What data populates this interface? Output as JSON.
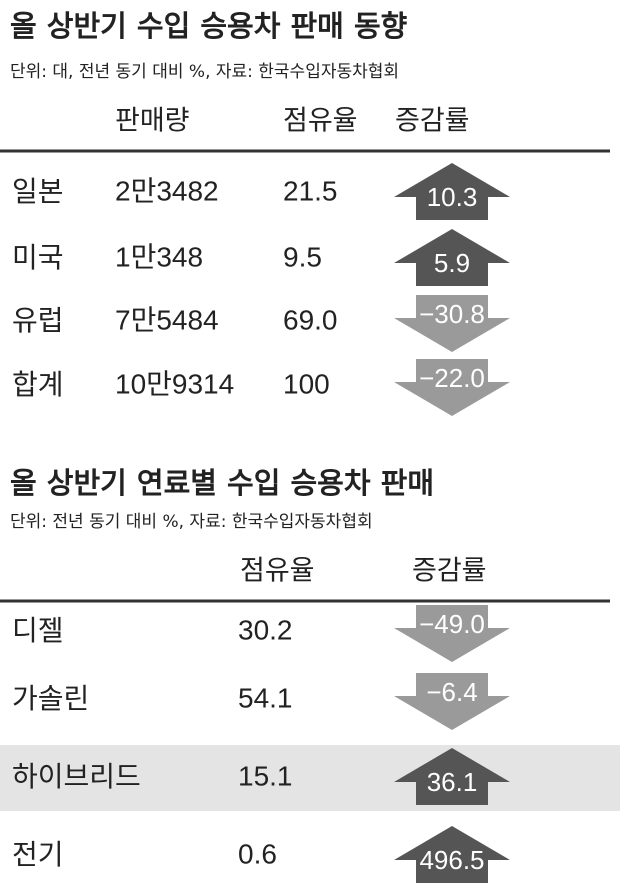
{
  "tables": [
    {
      "title": "올 상반기 수입 승용차 판매 동향",
      "subtitle": "단위: 대, 전년 동기 대비 %, 자료: 한국수입자동차협회",
      "header": [
        "판매량",
        "점유율",
        "증감률"
      ],
      "rows": [
        [
          "일본",
          "2만3482",
          "21.5",
          "10.3"
        ],
        [
          "미국",
          "1만348",
          "9.5",
          "5.9"
        ],
        [
          "유럽",
          "7만5484",
          "69.0",
          "−30.8"
        ],
        [
          "합계",
          "10만9314",
          "100",
          "−22.0"
        ]
      ]
    },
    {
      "title": "올 상반기 연료별 수입 승용차 판매",
      "subtitle": "단위: 전년 동기 대비 %, 자료: 한국수입자동차협회",
      "header": [
        "점유율",
        "증감률"
      ],
      "rows": [
        [
          "디젤",
          "30.2",
          "−49.0"
        ],
        [
          "가솔린",
          "54.1",
          "−6.4"
        ],
        [
          "하이브리드",
          "15.1",
          "36.1"
        ],
        [
          "전기",
          "0.6",
          "496.5"
        ]
      ],
      "highlight_row": 2
    }
  ]
}
